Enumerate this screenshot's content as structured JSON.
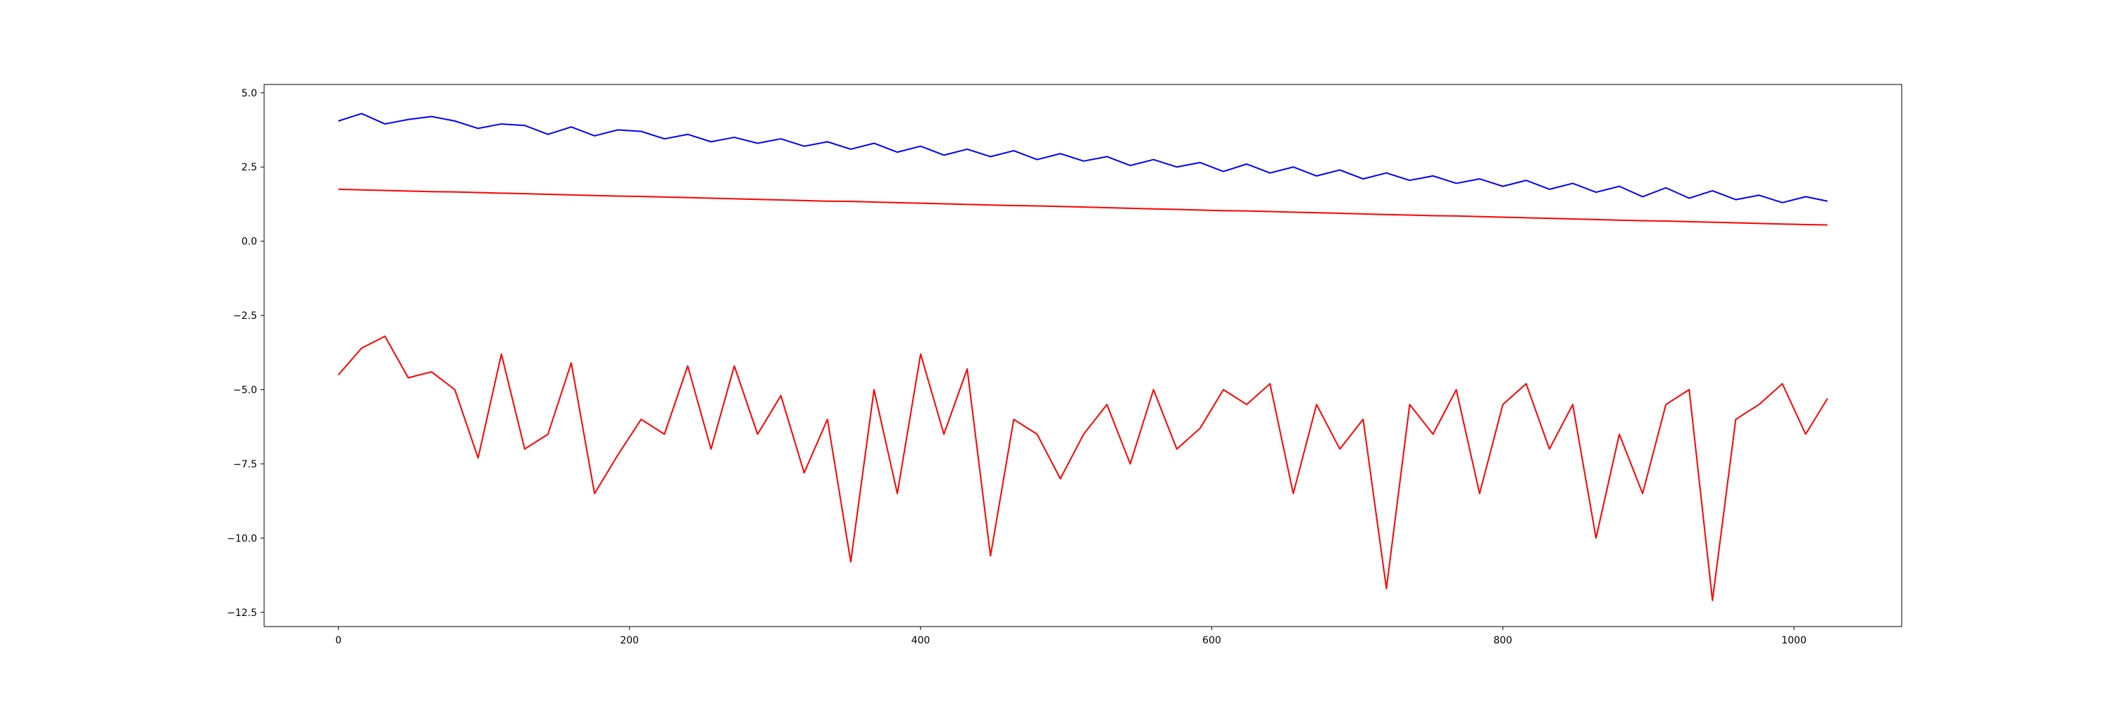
{
  "chart_data": {
    "type": "line",
    "x": [
      0,
      16,
      32,
      48,
      64,
      80,
      96,
      112,
      128,
      144,
      160,
      176,
      192,
      208,
      224,
      240,
      256,
      272,
      288,
      304,
      320,
      336,
      352,
      368,
      384,
      400,
      416,
      432,
      448,
      464,
      480,
      496,
      512,
      528,
      544,
      560,
      576,
      592,
      608,
      624,
      640,
      656,
      672,
      688,
      704,
      720,
      736,
      752,
      768,
      784,
      800,
      816,
      832,
      848,
      864,
      880,
      896,
      912,
      928,
      944,
      960,
      976,
      992,
      1008,
      1023
    ],
    "series": [
      {
        "color": "#0000ff",
        "values": [
          4.05,
          4.3,
          3.95,
          4.1,
          4.2,
          4.05,
          3.8,
          3.95,
          3.9,
          3.6,
          3.85,
          3.55,
          3.75,
          3.7,
          3.45,
          3.6,
          3.35,
          3.5,
          3.3,
          3.45,
          3.2,
          3.35,
          3.1,
          3.3,
          3.0,
          3.2,
          2.9,
          3.1,
          2.85,
          3.05,
          2.75,
          2.95,
          2.7,
          2.85,
          2.55,
          2.75,
          2.5,
          2.65,
          2.35,
          2.6,
          2.3,
          2.5,
          2.2,
          2.4,
          2.1,
          2.3,
          2.05,
          2.2,
          1.95,
          2.1,
          1.85,
          2.05,
          1.75,
          1.95,
          1.65,
          1.85,
          1.5,
          1.8,
          1.45,
          1.7,
          1.4,
          1.55,
          1.3,
          1.5,
          1.35
        ]
      },
      {
        "color": "#ff0000",
        "values": [
          1.75,
          1.73,
          1.71,
          1.69,
          1.67,
          1.66,
          1.64,
          1.62,
          1.6,
          1.58,
          1.56,
          1.54,
          1.52,
          1.51,
          1.49,
          1.47,
          1.45,
          1.43,
          1.41,
          1.39,
          1.37,
          1.35,
          1.34,
          1.32,
          1.3,
          1.28,
          1.26,
          1.24,
          1.22,
          1.2,
          1.19,
          1.17,
          1.15,
          1.13,
          1.11,
          1.09,
          1.07,
          1.05,
          1.03,
          1.02,
          1.0,
          0.98,
          0.96,
          0.94,
          0.92,
          0.9,
          0.88,
          0.86,
          0.85,
          0.83,
          0.81,
          0.79,
          0.77,
          0.75,
          0.73,
          0.71,
          0.69,
          0.68,
          0.66,
          0.64,
          0.62,
          0.6,
          0.58,
          0.56,
          0.55
        ]
      },
      {
        "color": "#ff0000",
        "values": [
          -4.5,
          -3.6,
          -3.2,
          -4.6,
          -4.4,
          -5.0,
          -7.3,
          -3.8,
          -7.0,
          -6.5,
          -4.1,
          -8.5,
          -7.2,
          -6.0,
          -6.5,
          -4.2,
          -7.0,
          -4.2,
          -6.5,
          -5.2,
          -7.8,
          -6.0,
          -10.8,
          -5.0,
          -8.5,
          -3.8,
          -6.5,
          -4.3,
          -10.6,
          -6.0,
          -6.5,
          -8.0,
          -6.5,
          -5.5,
          -7.5,
          -5.0,
          -7.0,
          -6.3,
          -5.0,
          -5.5,
          -4.8,
          -8.5,
          -5.5,
          -7.0,
          -6.0,
          -11.7,
          -5.5,
          -6.5,
          -5.0,
          -8.5,
          -5.5,
          -4.8,
          -7.0,
          -5.5,
          -10.0,
          -6.5,
          -8.5,
          -5.5,
          -5.0,
          -12.1,
          -6.0,
          -5.5,
          -4.8,
          -6.5,
          -5.3
        ]
      }
    ],
    "xlim": [
      -51,
      1074
    ],
    "ylim": [
      -12.98,
      5.28
    ],
    "xticks": [
      0,
      200,
      400,
      600,
      800,
      1000
    ],
    "yticks": [
      {
        "value": -12.5,
        "label": "−12.5"
      },
      {
        "value": -10,
        "label": "−10.0"
      },
      {
        "value": -7.5,
        "label": "−7.5"
      },
      {
        "value": -5,
        "label": "−5.0"
      },
      {
        "value": -2.5,
        "label": "−2.5"
      },
      {
        "value": 0,
        "label": "0.0"
      },
      {
        "value": 2.5,
        "label": "2.5"
      },
      {
        "value": 5,
        "label": "5.0"
      }
    ],
    "grid": false
  }
}
